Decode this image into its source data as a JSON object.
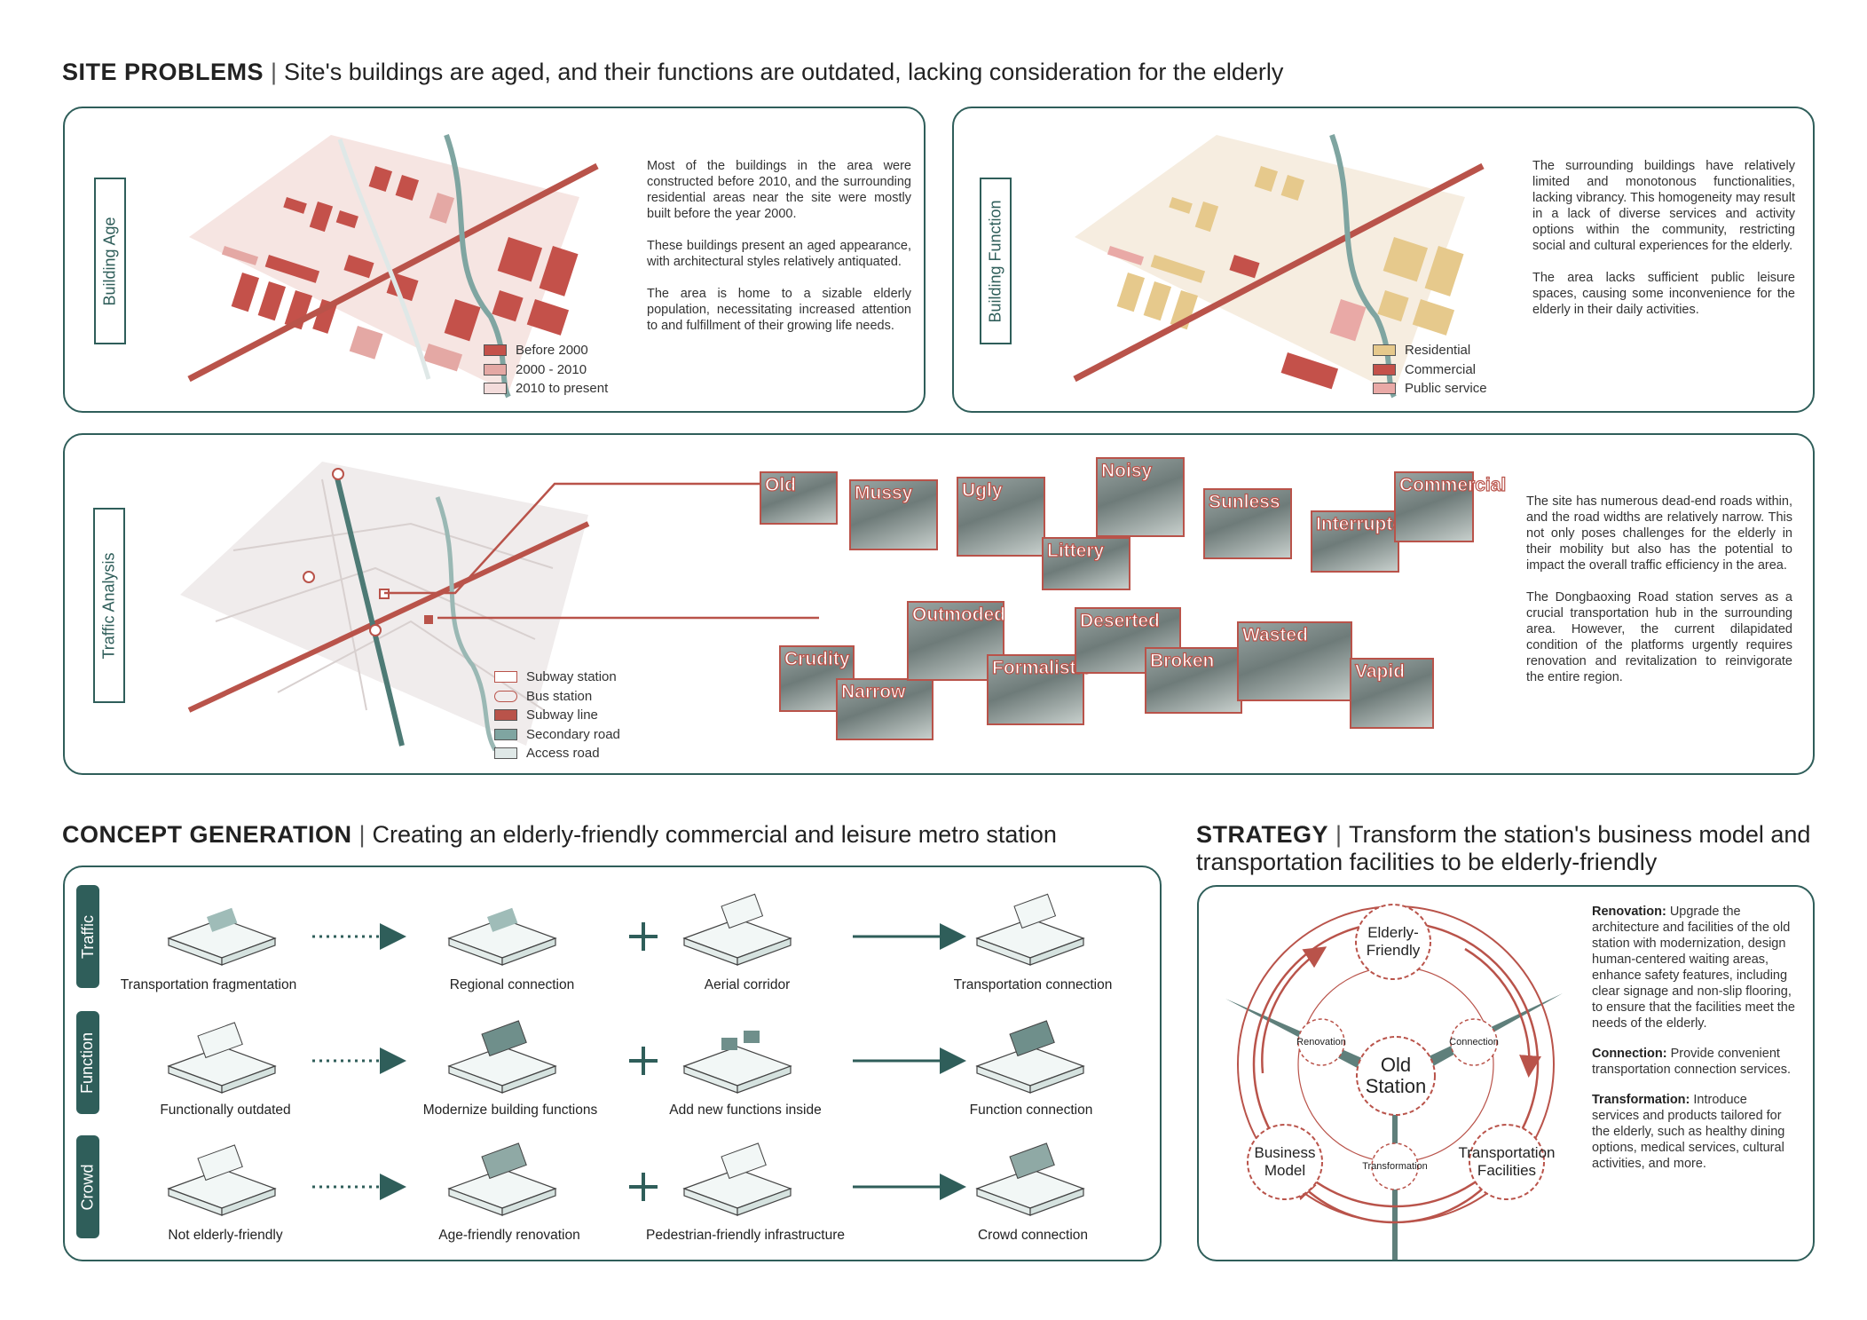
{
  "site_problems": {
    "title": "SITE PROBLEMS",
    "subtitle": "Site's buildings are aged, and their functions are outdated, lacking consideration for the elderly"
  },
  "building_age": {
    "label": "Building Age",
    "paragraphs": [
      "Most of the buildings in the area were constructed before 2010, and the surrounding residential areas near the site were mostly built before the year 2000.",
      "These buildings present an aged appearance, with architectural styles relatively antiquated.",
      "The area is home to a sizable elderly population, necessitating increased attention to and fulﬁllment of their growing life needs."
    ],
    "legend": [
      "Before 2000",
      "2000 - 2010",
      "2010 to present"
    ],
    "colors": [
      "#c4514a",
      "#e4a8a4",
      "#f3dcdb"
    ]
  },
  "building_function": {
    "label": "Building Function",
    "paragraphs": [
      "The surrounding buildings have relatively limited and monotonous functionalities, lacking vibrancy. This homogeneity may result in a lack of diverse services and activity options within the community, restricting social and cultural experiences for the elderly.",
      "The area lacks sufficient public leisure spaces, causing some inconvenience for the elderly in their daily activities."
    ],
    "legend": [
      "Residential",
      "Commercial",
      "Public service"
    ],
    "colors": [
      "#e6c98c",
      "#c4514a",
      "#e9a9a6"
    ]
  },
  "traffic": {
    "label": "Traffic Analysis",
    "legend": [
      "Subway station",
      "Bus station",
      "Subway line",
      "Secondary road",
      "Access road"
    ],
    "paragraphs": [
      "The site has numerous dead-end roads within, and the road widths are relatively narrow. This not only poses challenges for the elderly in their mobility but also has the potential to impact the overall traffic efﬁciency in the area.",
      "The Dongbaoxing Road station serves as a crucial transportation hub in the surrounding area. However, the current dilapidated condition of the platforms urgently requires renovation and revitalization to reinvigorate the entire region."
    ],
    "photo_tags": [
      "Old",
      "Mussy",
      "Ugly",
      "Littery",
      "Noisy",
      "Sunless",
      "Interrupted",
      "Commercial",
      "Crudity",
      "Narrow",
      "Outmoded",
      "Formalistic",
      "Deserted",
      "Broken",
      "Wasted",
      "Vapid"
    ]
  },
  "concept": {
    "title": "CONCEPT GENERATION",
    "subtitle": "Creating an elderly-friendly commercial and leisure metro station",
    "rows": [
      {
        "tab": "Traffic",
        "labels": [
          "Transportation fragmentation",
          "Regional connection",
          "Aerial corridor",
          "Transportation connection"
        ]
      },
      {
        "tab": "Function",
        "labels": [
          "Functionally outdated",
          "Modernize building functions",
          "Add new functions inside",
          "Function connection"
        ]
      },
      {
        "tab": "Crowd",
        "labels": [
          "Not elderly-friendly",
          "Age-friendly renovation",
          "Pedestrian-friendly infrastructure",
          "Crowd connection"
        ]
      }
    ]
  },
  "strategy": {
    "title": "STRATEGY",
    "subtitle_line1": "Transform the station's business model and",
    "subtitle_line2": "transportation facilities to be elderly-friendly",
    "center": [
      "Old",
      "Station"
    ],
    "nodes": {
      "top": [
        "Elderly-",
        "Friendly"
      ],
      "left": [
        "Business",
        "Model"
      ],
      "right": [
        "Transportation",
        "Facilities"
      ]
    },
    "small_nodes": [
      "Renovation",
      "Connection",
      "Transformation"
    ],
    "items": [
      {
        "head": "Renovation:",
        "text": "Upgrade the architecture and facilities of the old station with modernization, design human-centered waiting areas, enhance safety features, including clear signage and non-slip ﬂooring, to ensure that the facilities meet the needs of the elderly."
      },
      {
        "head": "Connection:",
        "text": "Provide convenient transportation connection services."
      },
      {
        "head": "Transformation:",
        "text": "Introduce services and products tailored for the elderly, such as healthy dining options, medical services, cultural activities, and more."
      }
    ],
    "accent": "#b9534a"
  },
  "theme": {
    "teal": "#2f5e5a",
    "red": "#b9534a"
  }
}
